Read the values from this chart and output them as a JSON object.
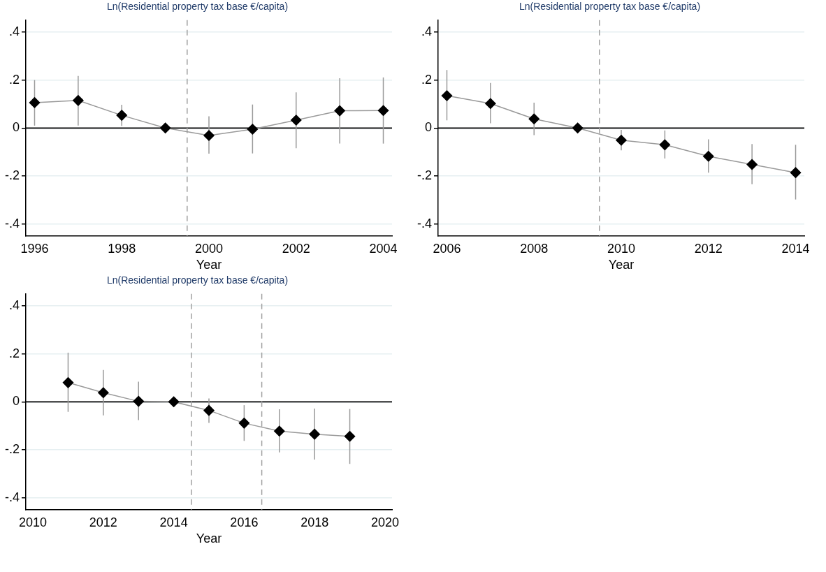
{
  "chart_data": [
    {
      "type": "line",
      "title": "Ln(Residential property tax base €/capita)",
      "xlabel": "Year",
      "x": [
        1996,
        1997,
        1998,
        1999,
        2000,
        2001,
        2002,
        2003,
        2004
      ],
      "xlim": [
        1995.8,
        2004.2
      ],
      "xticks": [
        1996,
        1998,
        2000,
        2002,
        2004
      ],
      "ylim": [
        -0.45,
        0.45
      ],
      "yticks": [
        {
          "value": -0.4,
          "label": "-.4"
        },
        {
          "value": -0.2,
          "label": "-.2"
        },
        {
          "value": 0,
          "label": "0"
        },
        {
          "value": 0.2,
          "label": ".2"
        },
        {
          "value": 0.4,
          "label": ".4"
        }
      ],
      "grid": "y",
      "legend": false,
      "marker": "diamond",
      "line_style": "solid",
      "series": [
        {
          "color": "#000000",
          "values": [
            0.106,
            0.115,
            0.053,
            0,
            -0.031,
            -0.005,
            0.033,
            0.072,
            0.073
          ],
          "errors": [
            [
              0.01,
              0.2
            ],
            [
              0.01,
              0.217
            ],
            [
              0.009,
              0.097
            ],
            null,
            [
              -0.107,
              0.049
            ],
            [
              -0.106,
              0.098
            ],
            [
              -0.084,
              0.149
            ],
            [
              -0.065,
              0.208
            ],
            [
              -0.065,
              0.211
            ]
          ]
        }
      ],
      "ref_lines": [
        {
          "axis": "y",
          "value": 0,
          "color": "#000000",
          "line_style": "solid"
        },
        {
          "axis": "x",
          "value": 1999.5,
          "color": "#a0a0a0",
          "line_style": "dashed"
        }
      ]
    },
    {
      "type": "line",
      "title": "Ln(Residential property tax base €/capita)",
      "xlabel": "Year",
      "x": [
        2006,
        2007,
        2008,
        2009,
        2010,
        2011,
        2012,
        2013,
        2014
      ],
      "xlim": [
        2005.8,
        2014.2
      ],
      "xticks": [
        2006,
        2008,
        2010,
        2012,
        2014
      ],
      "ylim": [
        -0.45,
        0.45
      ],
      "yticks": [
        {
          "value": -0.4,
          "label": "-.4"
        },
        {
          "value": -0.2,
          "label": "-.2"
        },
        {
          "value": 0,
          "label": "0"
        },
        {
          "value": 0.2,
          "label": ".2"
        },
        {
          "value": 0.4,
          "label": ".4"
        }
      ],
      "grid": "y",
      "legend": false,
      "marker": "diamond",
      "line_style": "solid",
      "series": [
        {
          "color": "#000000",
          "values": [
            0.135,
            0.102,
            0.038,
            0,
            -0.051,
            -0.07,
            -0.118,
            -0.152,
            -0.186
          ],
          "errors": [
            [
              0.032,
              0.242
            ],
            [
              0.02,
              0.188
            ],
            [
              -0.03,
              0.106
            ],
            null,
            [
              -0.093,
              -0.008
            ],
            [
              -0.127,
              -0.01
            ],
            [
              -0.186,
              -0.047
            ],
            [
              -0.234,
              -0.067
            ],
            [
              -0.298,
              -0.07
            ]
          ]
        }
      ],
      "ref_lines": [
        {
          "axis": "y",
          "value": 0,
          "color": "#000000",
          "line_style": "solid"
        },
        {
          "axis": "x",
          "value": 2009.5,
          "color": "#a0a0a0",
          "line_style": "dashed"
        }
      ]
    },
    {
      "type": "line",
      "title": "Ln(Residential property tax base €/capita)",
      "xlabel": "Year",
      "x": [
        2011,
        2012,
        2013,
        2014,
        2015,
        2016,
        2017,
        2018,
        2019
      ],
      "xlim": [
        2009.8,
        2020.2
      ],
      "xticks": [
        2010,
        2012,
        2014,
        2016,
        2018,
        2020
      ],
      "ylim": [
        -0.45,
        0.45
      ],
      "yticks": [
        {
          "value": -0.4,
          "label": "-.4"
        },
        {
          "value": -0.2,
          "label": "-.2"
        },
        {
          "value": 0,
          "label": "0"
        },
        {
          "value": 0.2,
          "label": ".2"
        },
        {
          "value": 0.4,
          "label": ".4"
        }
      ],
      "grid": "y",
      "legend": false,
      "marker": "diamond",
      "line_style": "solid",
      "series": [
        {
          "color": "#000000",
          "values": [
            0.08,
            0.038,
            0.002,
            0,
            -0.036,
            -0.089,
            -0.122,
            -0.135,
            -0.144
          ],
          "errors": [
            [
              -0.042,
              0.205
            ],
            [
              -0.057,
              0.133
            ],
            [
              -0.076,
              0.084
            ],
            null,
            [
              -0.088,
              0.014
            ],
            [
              -0.163,
              -0.014
            ],
            [
              -0.211,
              -0.031
            ],
            [
              -0.241,
              -0.028
            ],
            [
              -0.259,
              -0.03
            ]
          ]
        }
      ],
      "ref_lines": [
        {
          "axis": "y",
          "value": 0,
          "color": "#000000",
          "line_style": "solid"
        },
        {
          "axis": "x",
          "value": 2014.5,
          "color": "#a0a0a0",
          "line_style": "dashed"
        },
        {
          "axis": "x",
          "value": 2016.5,
          "color": "#a0a0a0",
          "line_style": "dashed"
        }
      ]
    }
  ]
}
